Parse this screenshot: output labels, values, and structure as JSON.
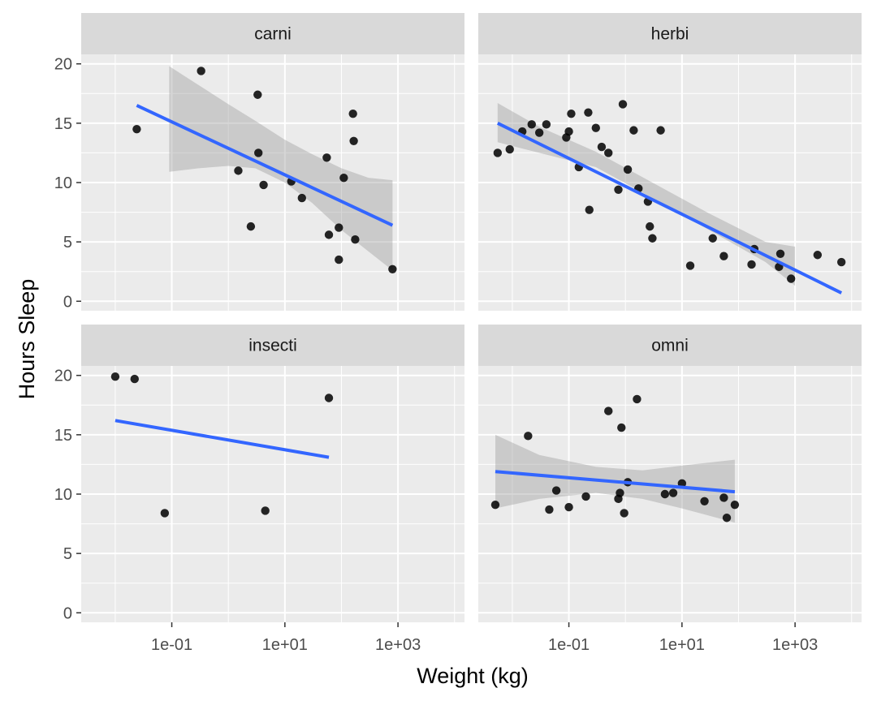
{
  "chart_data": {
    "type": "scatter",
    "xlabel": "Weight (kg)",
    "ylabel": "Hours Sleep",
    "x_scale": "log10",
    "x_tick_labels": [
      "1e-01",
      "1e+01",
      "1e+03"
    ],
    "x_tick_values": [
      0.1,
      10,
      1000
    ],
    "y_tick_labels": [
      "0",
      "5",
      "10",
      "15",
      "20"
    ],
    "y_tick_values": [
      0,
      5,
      10,
      15,
      20
    ],
    "x_range": [
      0.0025,
      15000
    ],
    "y_range": [
      -0.8,
      20.8
    ],
    "grid": true,
    "colors": {
      "panel_background": "#ebebeb",
      "strip_background": "#d9d9d9",
      "grid": "#ffffff",
      "points": "#000000",
      "fit_line": "#3366ff",
      "confidence_band": "#999999"
    },
    "facets": [
      {
        "name": "carni",
        "points": [
          {
            "x": 0.024,
            "y": 14.5
          },
          {
            "x": 0.33,
            "y": 19.4
          },
          {
            "x": 1.5,
            "y": 11.0
          },
          {
            "x": 2.5,
            "y": 6.3
          },
          {
            "x": 3.3,
            "y": 17.4
          },
          {
            "x": 3.4,
            "y": 12.5
          },
          {
            "x": 4.2,
            "y": 9.8
          },
          {
            "x": 13.0,
            "y": 10.1
          },
          {
            "x": 20.0,
            "y": 8.7
          },
          {
            "x": 55.0,
            "y": 12.1
          },
          {
            "x": 60.0,
            "y": 5.6
          },
          {
            "x": 90.0,
            "y": 3.5
          },
          {
            "x": 90.0,
            "y": 6.2
          },
          {
            "x": 110.0,
            "y": 10.4
          },
          {
            "x": 160.0,
            "y": 15.8
          },
          {
            "x": 165.0,
            "y": 13.5
          },
          {
            "x": 175.0,
            "y": 5.2
          },
          {
            "x": 800.0,
            "y": 2.7
          }
        ],
        "fit": {
          "x_start": 0.024,
          "y_start": 16.5,
          "x_end": 800.0,
          "y_end": 6.4
        },
        "band": [
          {
            "x": 0.09,
            "lower": 10.9,
            "upper": 19.8
          },
          {
            "x": 0.3,
            "lower": 11.2,
            "upper": 18.2
          },
          {
            "x": 1.0,
            "lower": 11.4,
            "upper": 16.6
          },
          {
            "x": 3.0,
            "lower": 11.2,
            "upper": 15.2
          },
          {
            "x": 10.0,
            "lower": 10.0,
            "upper": 13.6
          },
          {
            "x": 30.0,
            "lower": 8.3,
            "upper": 12.4
          },
          {
            "x": 100.0,
            "lower": 6.0,
            "upper": 11.2
          },
          {
            "x": 300.0,
            "lower": 4.2,
            "upper": 10.4
          },
          {
            "x": 800.0,
            "lower": 2.6,
            "upper": 10.2
          }
        ]
      },
      {
        "name": "herbi",
        "points": [
          {
            "x": 0.0055,
            "y": 12.5
          },
          {
            "x": 0.009,
            "y": 12.8
          },
          {
            "x": 0.015,
            "y": 14.3
          },
          {
            "x": 0.022,
            "y": 14.9
          },
          {
            "x": 0.03,
            "y": 14.2
          },
          {
            "x": 0.04,
            "y": 14.9
          },
          {
            "x": 0.09,
            "y": 13.8
          },
          {
            "x": 0.1,
            "y": 14.3
          },
          {
            "x": 0.11,
            "y": 15.8
          },
          {
            "x": 0.15,
            "y": 11.3
          },
          {
            "x": 0.22,
            "y": 15.9
          },
          {
            "x": 0.23,
            "y": 7.7
          },
          {
            "x": 0.3,
            "y": 14.6
          },
          {
            "x": 0.38,
            "y": 13.0
          },
          {
            "x": 0.5,
            "y": 12.5
          },
          {
            "x": 0.75,
            "y": 9.4
          },
          {
            "x": 0.9,
            "y": 16.6
          },
          {
            "x": 1.1,
            "y": 11.1
          },
          {
            "x": 1.4,
            "y": 14.4
          },
          {
            "x": 1.7,
            "y": 9.5
          },
          {
            "x": 2.5,
            "y": 8.4
          },
          {
            "x": 2.7,
            "y": 6.3
          },
          {
            "x": 3.0,
            "y": 5.3
          },
          {
            "x": 4.2,
            "y": 14.4
          },
          {
            "x": 14.0,
            "y": 3.0
          },
          {
            "x": 35.0,
            "y": 5.3
          },
          {
            "x": 55.0,
            "y": 3.8
          },
          {
            "x": 170.0,
            "y": 3.1
          },
          {
            "x": 190.0,
            "y": 4.4
          },
          {
            "x": 520.0,
            "y": 2.9
          },
          {
            "x": 550.0,
            "y": 4.0
          },
          {
            "x": 850.0,
            "y": 1.9
          },
          {
            "x": 2500.0,
            "y": 3.9
          },
          {
            "x": 6600.0,
            "y": 3.3
          }
        ],
        "fit": {
          "x_start": 0.0055,
          "y_start": 15.0,
          "x_end": 6600.0,
          "y_end": 0.7
        },
        "band": [
          {
            "x": 0.0055,
            "lower": 13.4,
            "upper": 16.7
          },
          {
            "x": 0.03,
            "lower": 12.5,
            "upper": 14.7
          },
          {
            "x": 0.3,
            "lower": 11.3,
            "upper": 12.6
          },
          {
            "x": 3.0,
            "lower": 8.7,
            "upper": 10.0
          },
          {
            "x": 30.0,
            "lower": 6.0,
            "upper": 7.4
          },
          {
            "x": 300.0,
            "lower": 3.3,
            "upper": 5.0
          },
          {
            "x": 1000.0,
            "lower": 1.3,
            "upper": 4.6
          }
        ]
      },
      {
        "name": "insecti",
        "points": [
          {
            "x": 0.01,
            "y": 19.9
          },
          {
            "x": 0.022,
            "y": 19.7
          },
          {
            "x": 0.075,
            "y": 8.4
          },
          {
            "x": 4.5,
            "y": 8.6
          },
          {
            "x": 60.0,
            "y": 18.1
          }
        ],
        "fit": {
          "x_start": 0.01,
          "y_start": 16.2,
          "x_end": 60.0,
          "y_end": 13.1
        },
        "band": []
      },
      {
        "name": "omni",
        "points": [
          {
            "x": 0.005,
            "y": 9.1
          },
          {
            "x": 0.019,
            "y": 14.9
          },
          {
            "x": 0.045,
            "y": 8.7
          },
          {
            "x": 0.06,
            "y": 10.3
          },
          {
            "x": 0.1,
            "y": 8.9
          },
          {
            "x": 0.2,
            "y": 9.8
          },
          {
            "x": 0.5,
            "y": 17.0
          },
          {
            "x": 0.75,
            "y": 9.6
          },
          {
            "x": 0.8,
            "y": 10.1
          },
          {
            "x": 0.85,
            "y": 15.6
          },
          {
            "x": 0.95,
            "y": 8.4
          },
          {
            "x": 1.1,
            "y": 11.0
          },
          {
            "x": 1.6,
            "y": 18.0
          },
          {
            "x": 5.0,
            "y": 10.0
          },
          {
            "x": 7.0,
            "y": 10.1
          },
          {
            "x": 10.0,
            "y": 10.9
          },
          {
            "x": 25.0,
            "y": 9.4
          },
          {
            "x": 55.0,
            "y": 9.7
          },
          {
            "x": 62.0,
            "y": 8.0
          },
          {
            "x": 86.0,
            "y": 9.1
          }
        ],
        "fit": {
          "x_start": 0.005,
          "y_start": 11.9,
          "x_end": 86.0,
          "y_end": 10.2
        },
        "band": [
          {
            "x": 0.005,
            "lower": 8.8,
            "upper": 15.0
          },
          {
            "x": 0.03,
            "lower": 9.6,
            "upper": 13.3
          },
          {
            "x": 0.3,
            "lower": 10.1,
            "upper": 12.3
          },
          {
            "x": 2.0,
            "lower": 9.6,
            "upper": 12.0
          },
          {
            "x": 10.0,
            "lower": 8.8,
            "upper": 12.4
          },
          {
            "x": 86.0,
            "lower": 7.6,
            "upper": 12.9
          }
        ]
      }
    ]
  }
}
